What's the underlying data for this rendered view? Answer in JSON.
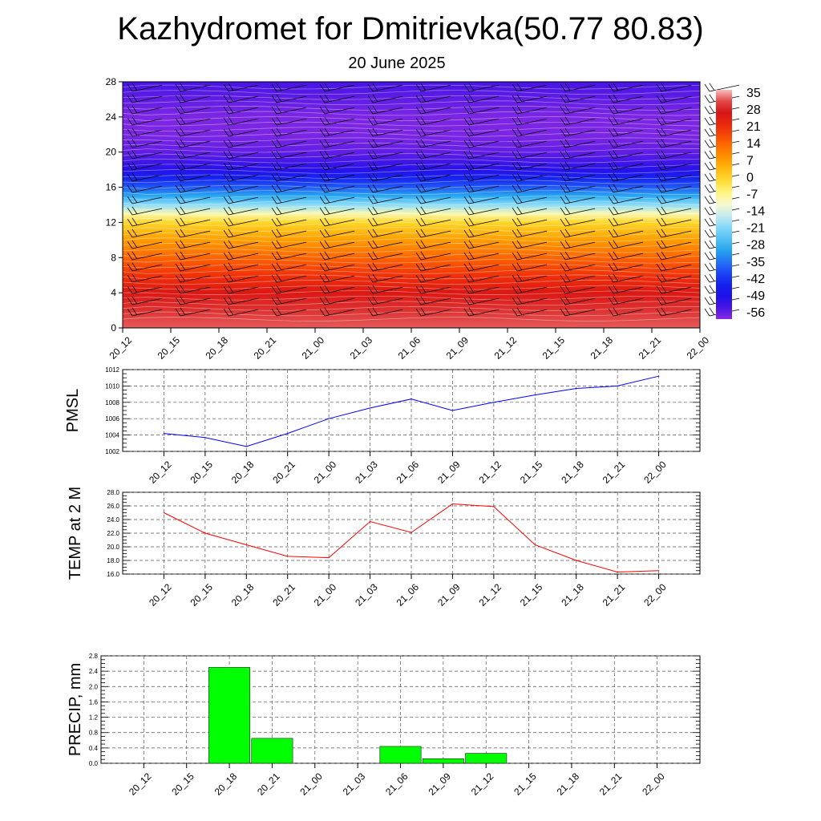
{
  "header": {
    "title": "Kazhydromet for Dmitrievka(50.77 80.83)",
    "subtitle": "20 June 2025"
  },
  "chart_data": [
    {
      "type": "heatmap",
      "name": "Temperature cross-section with wind barbs",
      "x_tick_labels": [
        "20_12",
        "20_15",
        "20_18",
        "20_21",
        "21_00",
        "21_03",
        "21_06",
        "21_09",
        "21_12",
        "21_15",
        "21_18",
        "21_21",
        "22_00"
      ],
      "y_tick_labels": [
        "0",
        "4",
        "8",
        "12",
        "16",
        "20",
        "24",
        "28"
      ],
      "ylim": [
        0,
        28
      ],
      "colorbar_labels": [
        "35",
        "28",
        "21",
        "14",
        "7",
        "0",
        "-7",
        "-14",
        "-21",
        "-28",
        "-35",
        "-42",
        "-49",
        "-56"
      ],
      "colorbar_range": [
        -60,
        38
      ],
      "level_temperatures": [
        [
          0,
          35
        ],
        [
          2,
          31
        ],
        [
          4,
          27
        ],
        [
          6,
          21
        ],
        [
          8,
          15
        ],
        [
          10,
          8
        ],
        [
          12,
          0
        ],
        [
          13,
          -9
        ],
        [
          14,
          -20
        ],
        [
          15,
          -30
        ],
        [
          16,
          -38
        ],
        [
          17,
          -45
        ],
        [
          18,
          -51
        ],
        [
          20,
          -57
        ],
        [
          22,
          -59
        ],
        [
          24,
          -59
        ],
        [
          26,
          -57
        ],
        [
          28,
          -55
        ]
      ],
      "colors": {
        "warm": "#d7191c",
        "neutral": "#ffffbf",
        "cold": "#2c2cd8"
      }
    },
    {
      "type": "line",
      "ylabel": "PMSL",
      "categories": [
        "20_12",
        "20_15",
        "20_18",
        "20_21",
        "21_00",
        "21_03",
        "21_06",
        "21_09",
        "21_12",
        "21_15",
        "21_18",
        "21_21",
        "22_00"
      ],
      "values": [
        1004.2,
        1003.7,
        1002.6,
        1004.2,
        1006.0,
        1007.3,
        1008.4,
        1007.0,
        1008.0,
        1008.9,
        1009.7,
        1010.0,
        1011.2
      ],
      "ylim": [
        1002,
        1012
      ],
      "y_ticks": [
        "1002",
        "1004",
        "1006",
        "1008",
        "1010",
        "1012"
      ],
      "color": "#0000ff"
    },
    {
      "type": "line",
      "ylabel": "TEMP at 2 M",
      "categories": [
        "20_12",
        "20_15",
        "20_18",
        "20_21",
        "21_00",
        "21_03",
        "21_06",
        "21_09",
        "21_12",
        "21_15",
        "21_18",
        "21_21",
        "22_00"
      ],
      "values": [
        25.0,
        22.0,
        20.3,
        18.6,
        18.4,
        23.7,
        22.1,
        26.3,
        25.9,
        20.3,
        18.0,
        16.3,
        16.5
      ],
      "ylim": [
        16,
        28
      ],
      "y_ticks": [
        "16.0",
        "18.0",
        "20.0",
        "22.0",
        "24.0",
        "26.0",
        "28.0"
      ],
      "color": "#ff0000"
    },
    {
      "type": "bar",
      "ylabel": "PRECIP, mm",
      "categories": [
        "20_12",
        "20_15",
        "20_18",
        "20_21",
        "21_00",
        "21_03",
        "21_06",
        "21_09",
        "21_12",
        "21_15",
        "21_18",
        "21_21",
        "22_00"
      ],
      "values": [
        0,
        0,
        2.5,
        0.65,
        0,
        0,
        0.44,
        0.12,
        0.26,
        0,
        0,
        0,
        0
      ],
      "ylim": [
        0,
        2.8
      ],
      "y_ticks": [
        "0.0",
        "0.4",
        "0.8",
        "1.2",
        "1.6",
        "2.0",
        "2.4",
        "2.8"
      ],
      "color": "#00ff00"
    }
  ]
}
